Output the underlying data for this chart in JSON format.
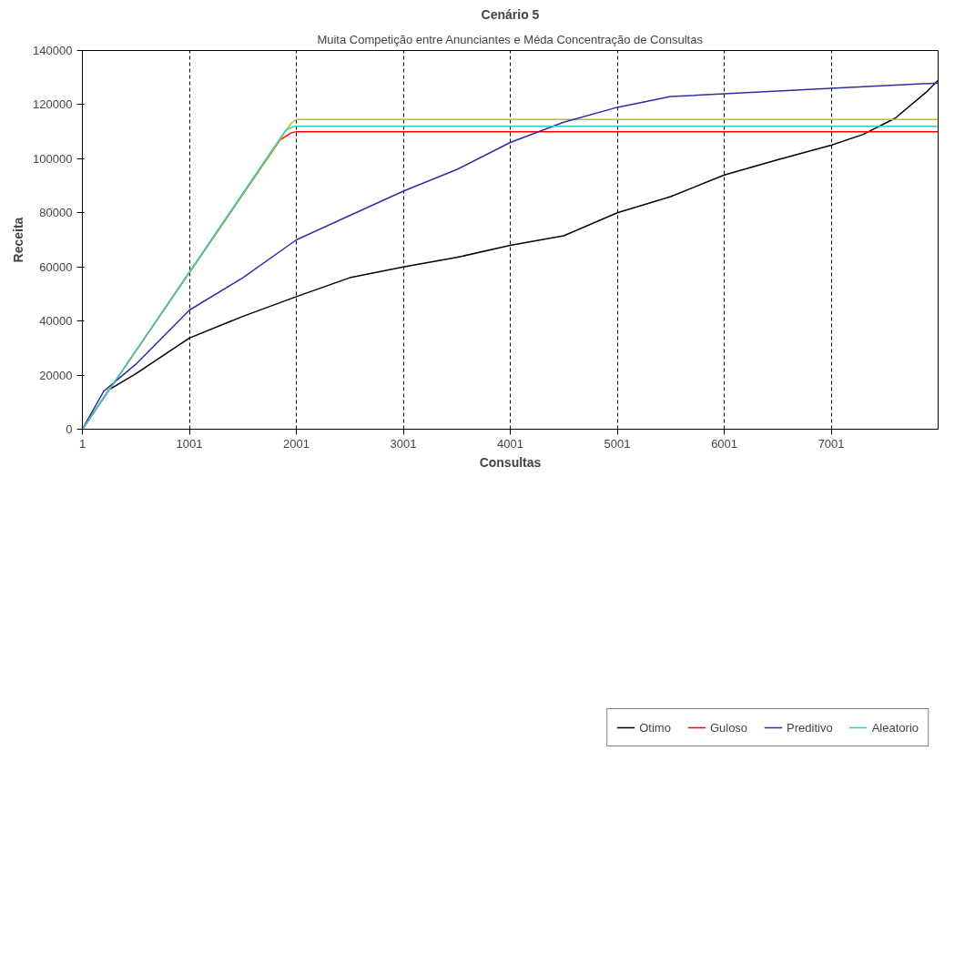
{
  "chart_data": {
    "type": "line",
    "title": "Cenário 5",
    "subtitle": "Muita Competição entre Anunciantes e Méda Concentração de Consultas",
    "xlabel": "Consultas",
    "ylabel": "Receita",
    "xlim": [
      1,
      8000
    ],
    "xticks": [
      1,
      1001,
      2001,
      3001,
      4001,
      5001,
      6001,
      7001
    ],
    "ylim": [
      0,
      140000
    ],
    "yticks": [
      0,
      20000,
      40000,
      60000,
      80000,
      100000,
      120000,
      140000
    ],
    "grid": "x",
    "legend": "bottom",
    "line_style": "solid",
    "series": [
      {
        "name": "Otimo",
        "color": "#000000",
        "x": [
          1,
          250,
          500,
          1001,
          1500,
          2001,
          2500,
          3001,
          3500,
          4001,
          4500,
          5001,
          5500,
          6001,
          6500,
          7001,
          7300,
          7600,
          7900,
          8000
        ],
        "values": [
          0,
          14600,
          20500,
          33700,
          41700,
          49000,
          56000,
          60000,
          63500,
          68000,
          71500,
          80000,
          86000,
          94000,
          99600,
          105000,
          109000,
          115000,
          125000,
          129000
        ]
      },
      {
        "name": "Guloso",
        "color": "#ff0000",
        "x": [
          1,
          1850,
          1950,
          2001,
          8000
        ],
        "values": [
          0,
          107000,
          109500,
          110000,
          110000
        ]
      },
      {
        "color": "#b5c800",
        "x": [
          1,
          1950,
          2001,
          8000
        ],
        "values": [
          0,
          113000,
          114500,
          114500
        ]
      },
      {
        "name": "Preditivo",
        "color": "#2e2ea8",
        "x": [
          1,
          200,
          500,
          1001,
          1501,
          2001,
          2500,
          3001,
          3500,
          4001,
          4500,
          5001,
          5500,
          6001,
          7001,
          8000
        ],
        "values": [
          0,
          14000,
          24000,
          44000,
          56000,
          70000,
          79000,
          88000,
          96000,
          106000,
          113500,
          119000,
          123000,
          124000,
          126000,
          128000
        ]
      },
      {
        "name": "Aleatorio",
        "color": "#33cccc",
        "x": [
          1,
          1900,
          1980,
          8000
        ],
        "values": [
          0,
          110500,
          112000,
          112000
        ]
      }
    ]
  }
}
